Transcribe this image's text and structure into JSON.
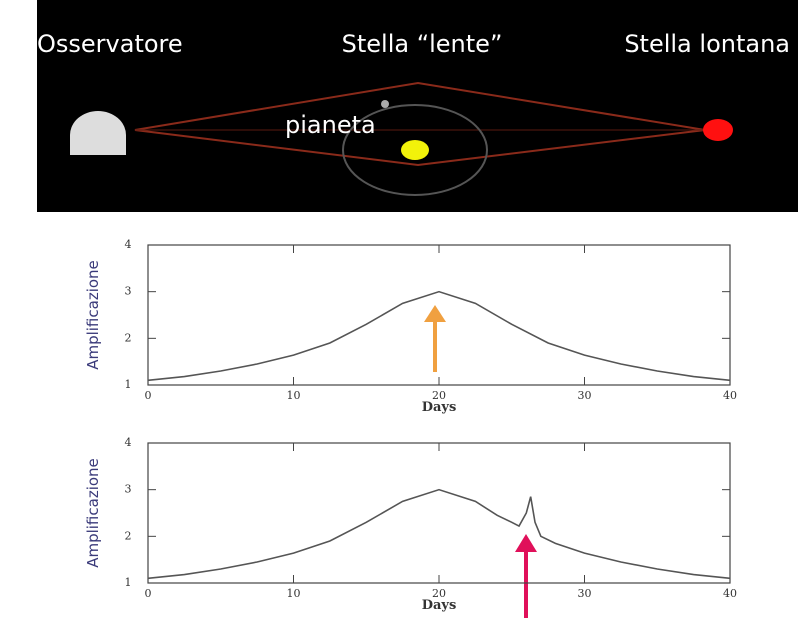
{
  "diagram": {
    "observer": "Osservatore",
    "lens": "Stella “lente”",
    "source": "Stella lontana",
    "planet": "pianeta"
  },
  "chart_data": [
    {
      "type": "line",
      "y_label": "Amplificazione",
      "x_label": "Days",
      "x": [
        0,
        2.5,
        5,
        7.5,
        10,
        12.5,
        15,
        17.5,
        20,
        22.5,
        25,
        27.5,
        30,
        32.5,
        35,
        37.5,
        40
      ],
      "series": [
        {
          "color": "#555555",
          "values": [
            1.1,
            1.18,
            1.3,
            1.45,
            1.64,
            1.9,
            2.3,
            2.75,
            3,
            2.75,
            2.3,
            1.9,
            1.64,
            1.45,
            1.3,
            1.18,
            1.1
          ]
        }
      ],
      "xlim": [
        0,
        40
      ],
      "ylim": [
        1,
        4
      ],
      "xticks": [
        0,
        10,
        20,
        30,
        40
      ],
      "yticks": [
        1,
        2,
        3,
        4
      ]
    },
    {
      "type": "line",
      "y_label": "Amplificazione",
      "x_label": "Days",
      "x": [
        0,
        2.5,
        5,
        7.5,
        10,
        12.5,
        15,
        17.5,
        20,
        22.5,
        24,
        25,
        25.5,
        26,
        26.3,
        26.6,
        27,
        28,
        30,
        32.5,
        35,
        37.5,
        40
      ],
      "series": [
        {
          "color": "#555555",
          "values": [
            1.1,
            1.18,
            1.3,
            1.45,
            1.64,
            1.9,
            2.3,
            2.75,
            3,
            2.75,
            2.45,
            2.3,
            2.22,
            2.5,
            2.85,
            2.3,
            2.0,
            1.85,
            1.64,
            1.45,
            1.3,
            1.18,
            1.1
          ]
        }
      ],
      "xlim": [
        0,
        40
      ],
      "ylim": [
        1,
        4
      ],
      "xticks": [
        0,
        10,
        20,
        30,
        40
      ],
      "yticks": [
        1,
        2,
        3,
        4
      ]
    }
  ]
}
